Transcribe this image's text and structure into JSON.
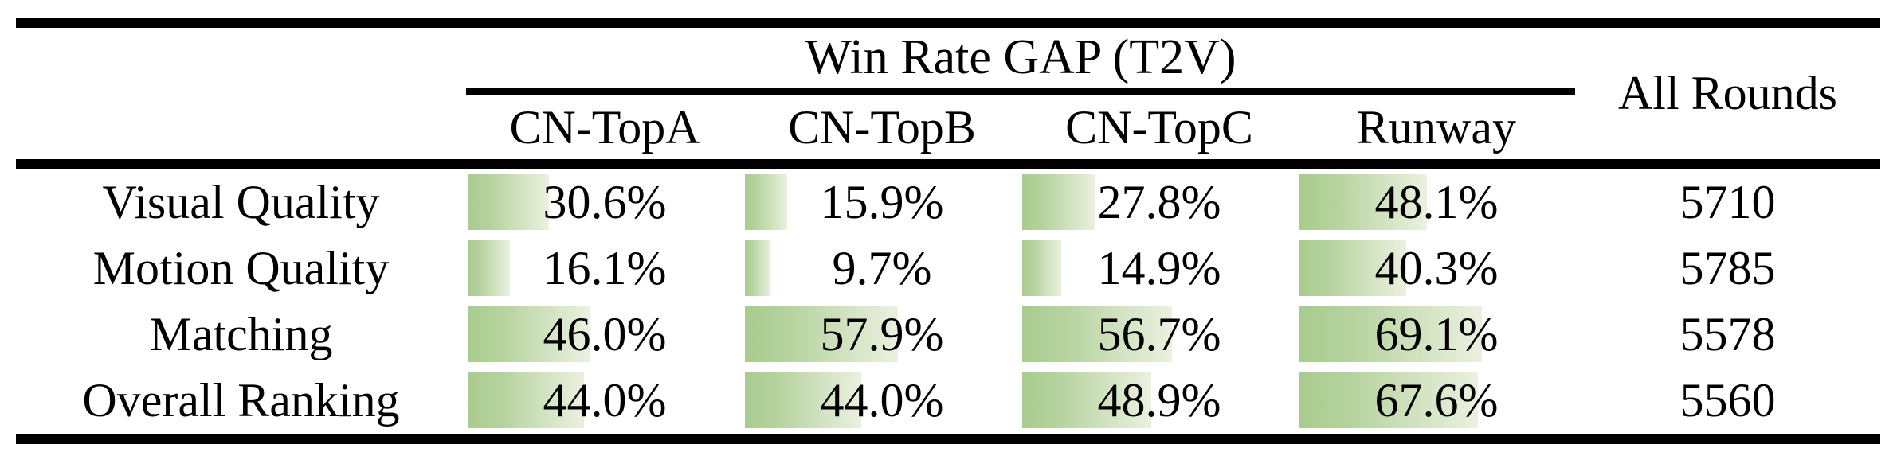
{
  "table": {
    "group_header": "Win Rate GAP (T2V)",
    "all_rounds_header": "All Rounds",
    "columns": [
      "CN-TopA",
      "CN-TopB",
      "CN-TopC",
      "Runway"
    ],
    "rows": [
      {
        "label": "Visual Quality",
        "cells": [
          {
            "value": 30.6,
            "display": "30.6%"
          },
          {
            "value": 15.9,
            "display": "15.9%"
          },
          {
            "value": 27.8,
            "display": "27.8%"
          },
          {
            "value": 48.1,
            "display": "48.1%"
          }
        ],
        "all_rounds": "5710"
      },
      {
        "label": "Motion Quality",
        "cells": [
          {
            "value": 16.1,
            "display": "16.1%"
          },
          {
            "value": 9.7,
            "display": "9.7%"
          },
          {
            "value": 14.9,
            "display": "14.9%"
          },
          {
            "value": 40.3,
            "display": "40.3%"
          }
        ],
        "all_rounds": "5785"
      },
      {
        "label": "Matching",
        "cells": [
          {
            "value": 46.0,
            "display": "46.0%"
          },
          {
            "value": 57.9,
            "display": "57.9%"
          },
          {
            "value": 56.7,
            "display": "56.7%"
          },
          {
            "value": 69.1,
            "display": "69.1%"
          }
        ],
        "all_rounds": "5578"
      },
      {
        "label": "Overall Ranking",
        "cells": [
          {
            "value": 44.0,
            "display": "44.0%"
          },
          {
            "value": 44.0,
            "display": "44.0%"
          },
          {
            "value": 48.9,
            "display": "48.9%"
          },
          {
            "value": 67.6,
            "display": "67.6%"
          }
        ],
        "all_rounds": "5560"
      }
    ],
    "colors": {
      "bar_gradient_start": "#a9cb8e",
      "bar_gradient_mid": "#b7d3a0",
      "bar_gradient_end": "#ebf1e0",
      "rule_color": "#000000",
      "text_color": "#000000"
    }
  }
}
